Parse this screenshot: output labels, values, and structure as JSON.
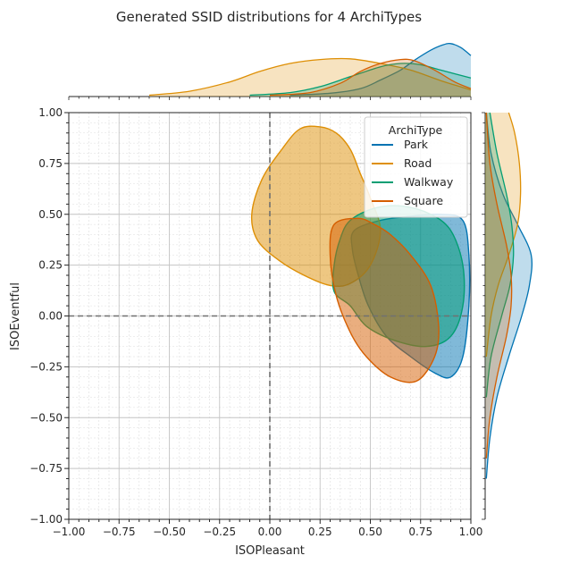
{
  "chart_data": {
    "type": "area",
    "title": "Generated SSID distributions for 4 ArchiTypes",
    "xlabel": "ISOPleasant",
    "ylabel": "ISOEventful",
    "xlim": [
      -1.0,
      1.0
    ],
    "ylim": [
      -1.0,
      1.0
    ],
    "x_ticks": [
      "−1.00",
      "−0.75",
      "−0.50",
      "−0.25",
      "0.00",
      "0.25",
      "0.50",
      "0.75",
      "1.00"
    ],
    "y_ticks": [
      "−1.00",
      "−0.75",
      "−0.50",
      "−0.25",
      "0.00",
      "0.25",
      "0.50",
      "0.75",
      "1.00"
    ],
    "grid": true,
    "reference_lines": {
      "x": 0.0,
      "y": 0.0
    },
    "legend": {
      "title": "ArchiType",
      "placement": "top-right"
    },
    "series": [
      {
        "name": "Park",
        "color": "#0173b2",
        "contour": [
          [
            0.42,
            0.42
          ],
          [
            0.55,
            0.47
          ],
          [
            0.7,
            0.49
          ],
          [
            0.85,
            0.5
          ],
          [
            0.96,
            0.47
          ],
          [
            0.99,
            0.3
          ],
          [
            0.99,
            0.05
          ],
          [
            0.96,
            -0.2
          ],
          [
            0.9,
            -0.3
          ],
          [
            0.82,
            -0.28
          ],
          [
            0.7,
            -0.2
          ],
          [
            0.58,
            -0.1
          ],
          [
            0.49,
            0.05
          ],
          [
            0.44,
            0.2
          ],
          [
            0.41,
            0.33
          ]
        ],
        "x_marginal": [
          [
            0.1,
            0.02
          ],
          [
            0.3,
            0.05
          ],
          [
            0.45,
            0.12
          ],
          [
            0.55,
            0.25
          ],
          [
            0.65,
            0.4
          ],
          [
            0.72,
            0.55
          ],
          [
            0.8,
            0.7
          ],
          [
            0.86,
            0.78
          ],
          [
            0.9,
            0.8
          ],
          [
            0.95,
            0.74
          ],
          [
            1.0,
            0.62
          ]
        ],
        "y_marginal": [
          [
            -0.8,
            0.02
          ],
          [
            -0.6,
            0.08
          ],
          [
            -0.4,
            0.2
          ],
          [
            -0.2,
            0.4
          ],
          [
            0.0,
            0.62
          ],
          [
            0.15,
            0.75
          ],
          [
            0.3,
            0.78
          ],
          [
            0.45,
            0.55
          ],
          [
            0.6,
            0.3
          ],
          [
            0.8,
            0.1
          ],
          [
            1.0,
            0.02
          ]
        ]
      },
      {
        "name": "Road",
        "color": "#de8f05",
        "contour": [
          [
            0.25,
            0.93
          ],
          [
            0.33,
            0.9
          ],
          [
            0.4,
            0.82
          ],
          [
            0.45,
            0.7
          ],
          [
            0.5,
            0.58
          ],
          [
            0.55,
            0.42
          ],
          [
            0.5,
            0.25
          ],
          [
            0.4,
            0.16
          ],
          [
            0.3,
            0.15
          ],
          [
            0.17,
            0.2
          ],
          [
            0.05,
            0.27
          ],
          [
            -0.06,
            0.37
          ],
          [
            -0.09,
            0.5
          ],
          [
            -0.04,
            0.67
          ],
          [
            0.06,
            0.82
          ],
          [
            0.15,
            0.92
          ]
        ],
        "x_marginal": [
          [
            -0.6,
            0.02
          ],
          [
            -0.4,
            0.08
          ],
          [
            -0.2,
            0.22
          ],
          [
            -0.05,
            0.38
          ],
          [
            0.1,
            0.5
          ],
          [
            0.25,
            0.56
          ],
          [
            0.4,
            0.57
          ],
          [
            0.55,
            0.5
          ],
          [
            0.7,
            0.4
          ],
          [
            0.85,
            0.24
          ],
          [
            1.0,
            0.1
          ]
        ],
        "y_marginal": [
          [
            -0.2,
            0.02
          ],
          [
            0.0,
            0.1
          ],
          [
            0.15,
            0.22
          ],
          [
            0.3,
            0.4
          ],
          [
            0.45,
            0.55
          ],
          [
            0.6,
            0.6
          ],
          [
            0.75,
            0.58
          ],
          [
            0.9,
            0.5
          ],
          [
            1.0,
            0.4
          ]
        ]
      },
      {
        "name": "Walkway",
        "color": "#029e73",
        "contour": [
          [
            0.4,
            0.47
          ],
          [
            0.52,
            0.53
          ],
          [
            0.66,
            0.54
          ],
          [
            0.8,
            0.5
          ],
          [
            0.9,
            0.42
          ],
          [
            0.96,
            0.25
          ],
          [
            0.96,
            0.05
          ],
          [
            0.9,
            -0.1
          ],
          [
            0.78,
            -0.15
          ],
          [
            0.62,
            -0.12
          ],
          [
            0.48,
            -0.05
          ],
          [
            0.4,
            0.05
          ],
          [
            0.32,
            0.12
          ],
          [
            0.32,
            0.25
          ],
          [
            0.35,
            0.38
          ]
        ],
        "x_marginal": [
          [
            -0.1,
            0.02
          ],
          [
            0.1,
            0.06
          ],
          [
            0.25,
            0.15
          ],
          [
            0.4,
            0.3
          ],
          [
            0.55,
            0.45
          ],
          [
            0.65,
            0.5
          ],
          [
            0.75,
            0.48
          ],
          [
            0.85,
            0.4
          ],
          [
            1.0,
            0.28
          ]
        ],
        "y_marginal": [
          [
            -0.4,
            0.02
          ],
          [
            -0.2,
            0.1
          ],
          [
            0.0,
            0.28
          ],
          [
            0.15,
            0.42
          ],
          [
            0.3,
            0.48
          ],
          [
            0.45,
            0.45
          ],
          [
            0.6,
            0.36
          ],
          [
            0.8,
            0.2
          ],
          [
            1.0,
            0.08
          ]
        ]
      },
      {
        "name": "Square",
        "color": "#d55e00",
        "contour": [
          [
            0.32,
            0.45
          ],
          [
            0.44,
            0.48
          ],
          [
            0.52,
            0.45
          ],
          [
            0.6,
            0.4
          ],
          [
            0.7,
            0.3
          ],
          [
            0.8,
            0.15
          ],
          [
            0.84,
            -0.05
          ],
          [
            0.82,
            -0.2
          ],
          [
            0.73,
            -0.32
          ],
          [
            0.6,
            -0.3
          ],
          [
            0.48,
            -0.2
          ],
          [
            0.4,
            -0.08
          ],
          [
            0.33,
            0.1
          ],
          [
            0.3,
            0.3
          ]
        ],
        "x_marginal": [
          [
            0.0,
            0.02
          ],
          [
            0.2,
            0.06
          ],
          [
            0.35,
            0.2
          ],
          [
            0.45,
            0.38
          ],
          [
            0.55,
            0.5
          ],
          [
            0.65,
            0.56
          ],
          [
            0.72,
            0.54
          ],
          [
            0.82,
            0.4
          ],
          [
            0.92,
            0.22
          ],
          [
            1.0,
            0.12
          ]
        ],
        "y_marginal": [
          [
            -0.7,
            0.02
          ],
          [
            -0.5,
            0.08
          ],
          [
            -0.3,
            0.2
          ],
          [
            -0.1,
            0.36
          ],
          [
            0.05,
            0.44
          ],
          [
            0.2,
            0.44
          ],
          [
            0.35,
            0.36
          ],
          [
            0.55,
            0.2
          ],
          [
            0.75,
            0.08
          ],
          [
            1.0,
            0.02
          ]
        ]
      }
    ]
  }
}
